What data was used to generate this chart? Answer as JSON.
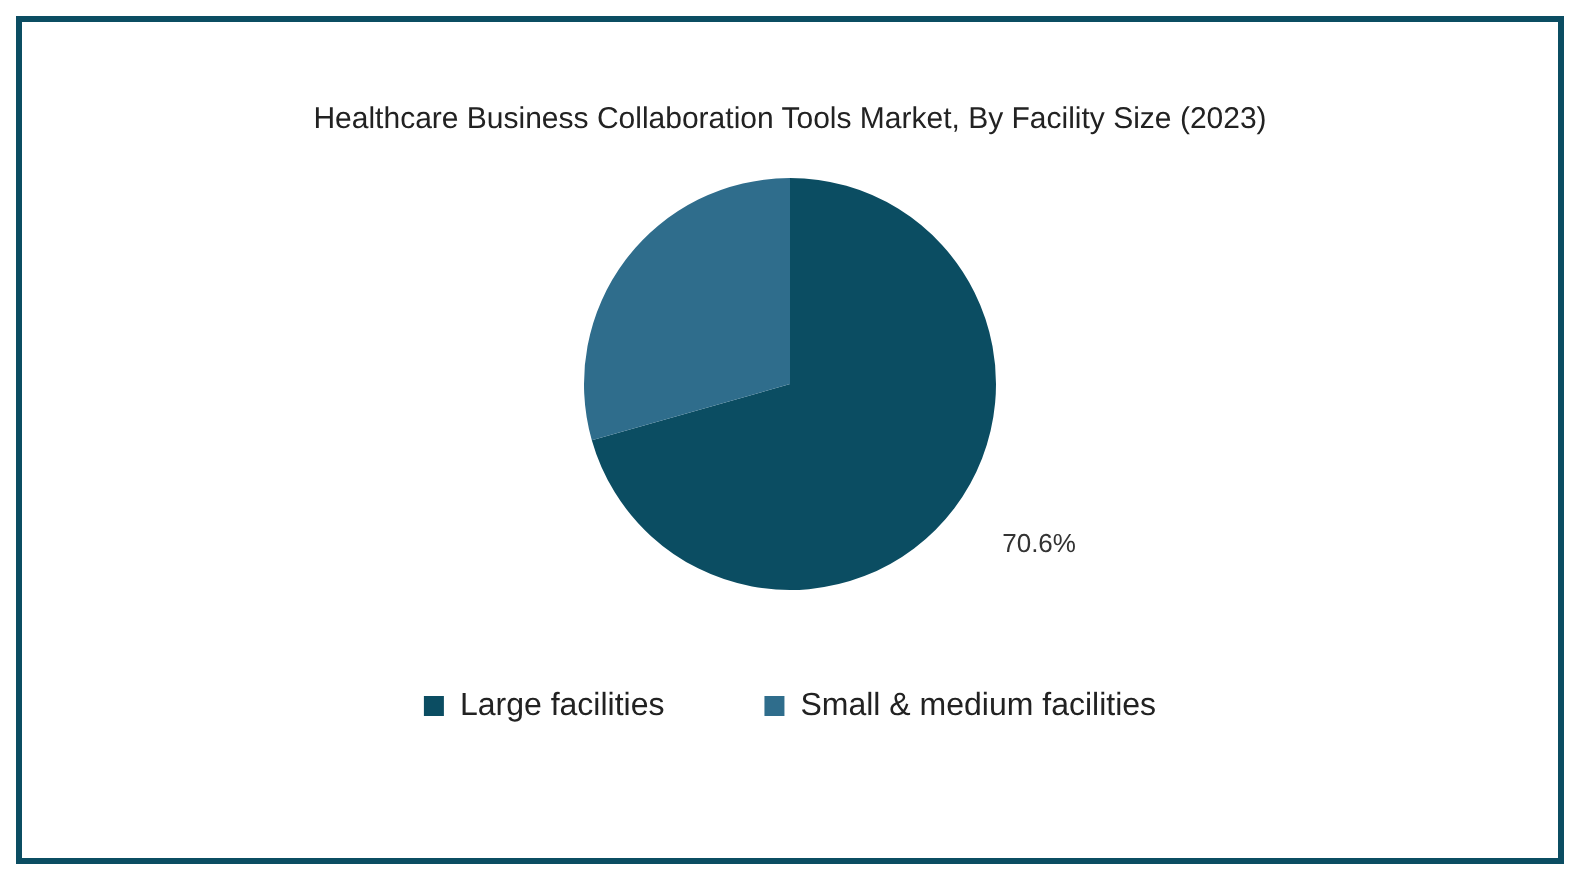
{
  "chart_data": {
    "type": "pie",
    "title": "Healthcare Business Collaboration Tools Market, By Facility Size (2023)",
    "categories": [
      "Large facilities",
      "Small & medium facilities"
    ],
    "values": [
      70.6,
      29.4
    ],
    "colors": [
      "#0b4d62",
      "#2f6d8c"
    ],
    "value_labels": [
      "70.6%",
      null
    ],
    "legend": "bottom"
  }
}
